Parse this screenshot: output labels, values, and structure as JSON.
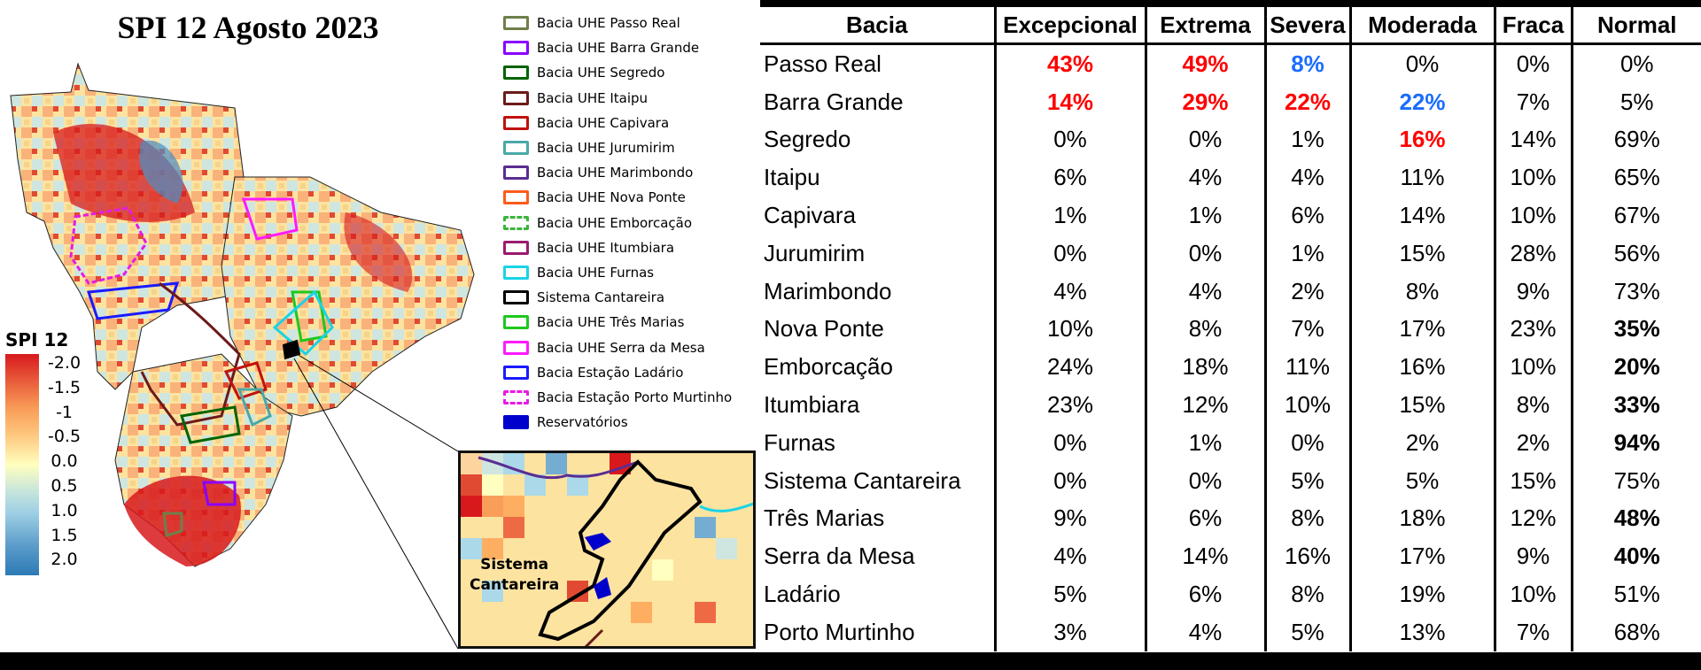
{
  "map": {
    "title": "SPI 12 Agosto 2023",
    "colorbar": {
      "title": "SPI 12",
      "labels": [
        "-2.0",
        "-1.5",
        "-1",
        "-0.5",
        "0.0",
        "0.5",
        "1.0",
        "1.5",
        "2.0"
      ],
      "colors": [
        "#d7191c",
        "#fdae61",
        "#ffffbf",
        "#abd9e9",
        "#2c7bb6"
      ]
    },
    "legend": [
      {
        "label": "Bacia UHE Passo Real",
        "color": "#6e7f4a",
        "style": "solid"
      },
      {
        "label": "Bacia UHE Barra Grande",
        "color": "#8b00ff",
        "style": "solid"
      },
      {
        "label": "Bacia UHE Segredo",
        "color": "#006400",
        "style": "solid"
      },
      {
        "label": "Bacia UHE Itaipu",
        "color": "#6b1a1a",
        "style": "solid"
      },
      {
        "label": "Bacia UHE Capivara",
        "color": "#c0120c",
        "style": "solid"
      },
      {
        "label": "Bacia UHE Jurumirim",
        "color": "#4aa8a8",
        "style": "solid"
      },
      {
        "label": "Bacia UHE Marimbondo",
        "color": "#5a2d91",
        "style": "solid"
      },
      {
        "label": "Bacia UHE Nova Ponte",
        "color": "#ff5a1a",
        "style": "solid"
      },
      {
        "label": "Bacia UHE Emborcação",
        "color": "#3cb43c",
        "style": "dashed"
      },
      {
        "label": "Bacia UHE Itumbiara",
        "color": "#9c1a6e",
        "style": "solid"
      },
      {
        "label": "Bacia UHE Furnas",
        "color": "#1ad3e6",
        "style": "solid"
      },
      {
        "label": "Sistema Cantareira",
        "color": "#000000",
        "style": "solid"
      },
      {
        "label": "Bacia UHE Três Marias",
        "color": "#1ec81e",
        "style": "solid"
      },
      {
        "label": "Bacia UHE Serra da Mesa",
        "color": "#ff1aff",
        "style": "solid"
      },
      {
        "label": "Bacia Estação Ladário",
        "color": "#1a1aff",
        "style": "solid"
      },
      {
        "label": "Bacia Estação Porto Murtinho",
        "color": "#e61ae6",
        "style": "dashed"
      },
      {
        "label": "Reservatórios",
        "color": "#0000cc",
        "style": "filled"
      }
    ],
    "inset_label_line1": "Sistema",
    "inset_label_line2": "Cantareira"
  },
  "chart_data": {
    "type": "table",
    "title": "SPI 12 Agosto 2023",
    "columns": [
      "Bacia",
      "Excepcional",
      "Extrema",
      "Severa",
      "Moderada",
      "Fraca",
      "Normal"
    ],
    "rows": [
      {
        "bacia": "Passo Real",
        "values": [
          "43%",
          "49%",
          "8%",
          "0%",
          "0%",
          "0%"
        ],
        "styles": [
          "red",
          "red",
          "blue",
          "",
          "",
          ""
        ]
      },
      {
        "bacia": "Barra Grande",
        "values": [
          "14%",
          "29%",
          "22%",
          "22%",
          "7%",
          "5%"
        ],
        "styles": [
          "red",
          "red",
          "red",
          "blue",
          "",
          ""
        ]
      },
      {
        "bacia": "Segredo",
        "values": [
          "0%",
          "0%",
          "1%",
          "16%",
          "14%",
          "69%"
        ],
        "styles": [
          "",
          "",
          "",
          "red",
          "",
          ""
        ]
      },
      {
        "bacia": "Itaipu",
        "values": [
          "6%",
          "4%",
          "4%",
          "11%",
          "10%",
          "65%"
        ],
        "styles": [
          "",
          "",
          "",
          "",
          "",
          ""
        ]
      },
      {
        "bacia": "Capivara",
        "values": [
          "1%",
          "1%",
          "6%",
          "14%",
          "10%",
          "67%"
        ],
        "styles": [
          "",
          "",
          "",
          "",
          "",
          ""
        ]
      },
      {
        "bacia": "Jurumirim",
        "values": [
          "0%",
          "0%",
          "1%",
          "15%",
          "28%",
          "56%"
        ],
        "styles": [
          "",
          "",
          "",
          "",
          "",
          ""
        ]
      },
      {
        "bacia": "Marimbondo",
        "values": [
          "4%",
          "4%",
          "2%",
          "8%",
          "9%",
          "73%"
        ],
        "styles": [
          "",
          "",
          "",
          "",
          "",
          ""
        ]
      },
      {
        "bacia": "Nova Ponte",
        "values": [
          "10%",
          "8%",
          "7%",
          "17%",
          "23%",
          "35%"
        ],
        "styles": [
          "",
          "",
          "",
          "",
          "",
          "bold"
        ]
      },
      {
        "bacia": "Emborcação",
        "values": [
          "24%",
          "18%",
          "11%",
          "16%",
          "10%",
          "20%"
        ],
        "styles": [
          "",
          "",
          "",
          "",
          "",
          "bold"
        ]
      },
      {
        "bacia": "Itumbiara",
        "values": [
          "23%",
          "12%",
          "10%",
          "15%",
          "8%",
          "33%"
        ],
        "styles": [
          "",
          "",
          "",
          "",
          "",
          "bold"
        ]
      },
      {
        "bacia": "Furnas",
        "values": [
          "0%",
          "1%",
          "0%",
          "2%",
          "2%",
          "94%"
        ],
        "styles": [
          "",
          "",
          "",
          "",
          "",
          "bold"
        ]
      },
      {
        "bacia": "Sistema Cantareira",
        "values": [
          "0%",
          "0%",
          "5%",
          "5%",
          "15%",
          "75%"
        ],
        "styles": [
          "",
          "",
          "",
          "",
          "",
          ""
        ]
      },
      {
        "bacia": "Três Marias",
        "values": [
          "9%",
          "6%",
          "8%",
          "18%",
          "12%",
          "48%"
        ],
        "styles": [
          "",
          "",
          "",
          "",
          "",
          "bold"
        ]
      },
      {
        "bacia": "Serra da Mesa",
        "values": [
          "4%",
          "14%",
          "16%",
          "17%",
          "9%",
          "40%"
        ],
        "styles": [
          "",
          "",
          "",
          "",
          "",
          "bold"
        ]
      },
      {
        "bacia": "Ladário",
        "values": [
          "5%",
          "6%",
          "8%",
          "19%",
          "10%",
          "51%"
        ],
        "styles": [
          "",
          "",
          "",
          "",
          "",
          ""
        ]
      },
      {
        "bacia": "Porto Murtinho",
        "values": [
          "3%",
          "4%",
          "5%",
          "13%",
          "7%",
          "68%"
        ],
        "styles": [
          "",
          "",
          "",
          "",
          "",
          ""
        ]
      }
    ],
    "highlight_colors": {
      "red": "#ff0000",
      "blue": "#1a6dff"
    }
  }
}
